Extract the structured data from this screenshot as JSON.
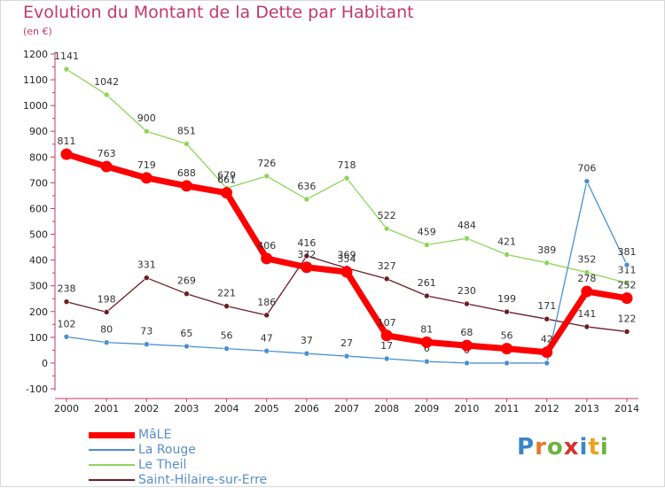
{
  "title": "Evolution du Montant de la Dette par Habitant",
  "subtitle": "(en €)",
  "logo": "Proxiti",
  "chart_data": {
    "type": "line",
    "x": [
      "2000",
      "2001",
      "2002",
      "2003",
      "2004",
      "2005",
      "2006",
      "2007",
      "2008",
      "2009",
      "2010",
      "2011",
      "2012",
      "2013",
      "2014"
    ],
    "ylim": [
      -100,
      1200
    ],
    "yticks": [
      "-100",
      "0",
      "100",
      "200",
      "300",
      "400",
      "500",
      "600",
      "700",
      "800",
      "900",
      "1000",
      "1100",
      "1200"
    ],
    "grid": false,
    "legend_position": "bottom-left",
    "series": [
      {
        "name": "Saint-Hilaire-sur-Erre",
        "color": "#6b1e24",
        "values": [
          238,
          198,
          331,
          269,
          221,
          186,
          416,
          369,
          327,
          261,
          230,
          199,
          171,
          141,
          122
        ],
        "labels": [
          "238",
          "198",
          "331",
          "269",
          "221",
          "186",
          "416",
          "369",
          "327",
          "261",
          "230",
          "199",
          "171",
          "141",
          "122"
        ]
      },
      {
        "name": "Le Theil",
        "color": "#8fd45a",
        "values": [
          1141,
          1042,
          900,
          851,
          679,
          726,
          636,
          718,
          522,
          459,
          484,
          421,
          389,
          352,
          311
        ],
        "labels": [
          "1141",
          "1042",
          "900",
          "851",
          "679",
          "726",
          "636",
          "718",
          "522",
          "459",
          "484",
          "421",
          "389",
          "352",
          "311"
        ]
      },
      {
        "name": "La Rouge",
        "color": "#4a90cf",
        "values": [
          102,
          80,
          73,
          65,
          56,
          47,
          37,
          27,
          17,
          6,
          0,
          0,
          0,
          706,
          381
        ],
        "labels": [
          "102",
          "80",
          "73",
          "65",
          "56",
          "47",
          "37",
          "27",
          "17",
          "6",
          "0",
          "0",
          "0",
          "706",
          "381"
        ]
      },
      {
        "name": "MâLE",
        "color": "#ff0000",
        "values": [
          811,
          763,
          719,
          688,
          661,
          406,
          372,
          354,
          107,
          81,
          68,
          56,
          42,
          278,
          252
        ],
        "labels": [
          "811",
          "763",
          "719",
          "688",
          "661",
          "406",
          "372",
          "354",
          "107",
          "81",
          "68",
          "56",
          "42",
          "278",
          "252"
        ]
      }
    ],
    "legend_order": [
      "MâLE",
      "La Rouge",
      "Le Theil",
      "Saint-Hilaire-sur-Erre"
    ]
  }
}
